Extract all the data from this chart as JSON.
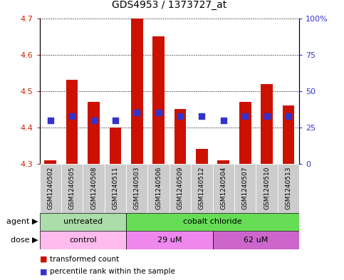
{
  "title": "GDS4953 / 1373727_at",
  "samples": [
    "GSM1240502",
    "GSM1240505",
    "GSM1240508",
    "GSM1240511",
    "GSM1240503",
    "GSM1240506",
    "GSM1240509",
    "GSM1240512",
    "GSM1240504",
    "GSM1240507",
    "GSM1240510",
    "GSM1240513"
  ],
  "transformed_count": [
    4.31,
    4.53,
    4.47,
    4.4,
    4.7,
    4.65,
    4.45,
    4.34,
    4.31,
    4.47,
    4.52,
    4.46
  ],
  "percentile_rank": [
    4.42,
    4.43,
    4.42,
    4.42,
    4.44,
    4.44,
    4.43,
    4.43,
    4.42,
    4.43,
    4.43,
    4.43
  ],
  "ylim_left": [
    4.3,
    4.7
  ],
  "ylim_right": [
    0,
    100
  ],
  "yticks_left": [
    4.3,
    4.4,
    4.5,
    4.6,
    4.7
  ],
  "yticks_right": [
    0,
    25,
    50,
    75,
    100
  ],
  "ytick_labels_right": [
    "0",
    "25",
    "50",
    "75",
    "100%"
  ],
  "bar_color": "#cc1100",
  "dot_color": "#3333cc",
  "bar_bottom": 4.3,
  "agent_groups": [
    {
      "label": "untreated",
      "start": 0,
      "end": 4,
      "color": "#aaddaa"
    },
    {
      "label": "cobalt chloride",
      "start": 4,
      "end": 12,
      "color": "#66dd55"
    }
  ],
  "dose_groups": [
    {
      "label": "control",
      "start": 0,
      "end": 4,
      "color": "#ffbbee"
    },
    {
      "label": "29 uM",
      "start": 4,
      "end": 8,
      "color": "#ee88ee"
    },
    {
      "label": "62 uM",
      "start": 8,
      "end": 12,
      "color": "#cc66cc"
    }
  ],
  "agent_row_label": "agent",
  "dose_row_label": "dose",
  "legend_bar_label": "transformed count",
  "legend_dot_label": "percentile rank within the sample",
  "background_color": "#ffffff",
  "sample_box_color": "#cccccc",
  "bar_width": 0.55,
  "dot_size": 35,
  "title_fontsize": 10
}
